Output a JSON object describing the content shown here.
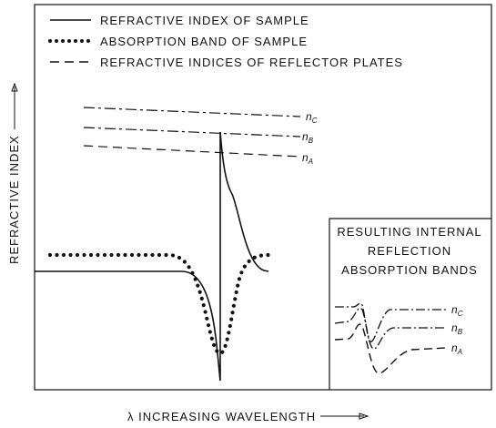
{
  "legend": [
    {
      "label": "REFRACTIVE INDEX OF SAMPLE"
    },
    {
      "label": "ABSORPTION BAND OF SAMPLE"
    },
    {
      "label": "REFRACTIVE INDICES OF REFLECTOR PLATES"
    }
  ],
  "axes": {
    "y_label": "REFRACTIVE INDEX",
    "x_label": "λ INCREASING WAVELENGTH"
  },
  "plate_labels": [
    {
      "symbol": "n",
      "subscript": "C"
    },
    {
      "symbol": "n",
      "subscript": "B"
    },
    {
      "symbol": "n",
      "subscript": "A"
    }
  ],
  "inset": {
    "title_lines": [
      "RESULTING INTERNAL",
      "REFLECTION",
      "ABSORPTION BANDS"
    ],
    "labels": [
      {
        "symbol": "n",
        "subscript": "C"
      },
      {
        "symbol": "n",
        "subscript": "B"
      },
      {
        "symbol": "n",
        "subscript": "A"
      }
    ]
  }
}
